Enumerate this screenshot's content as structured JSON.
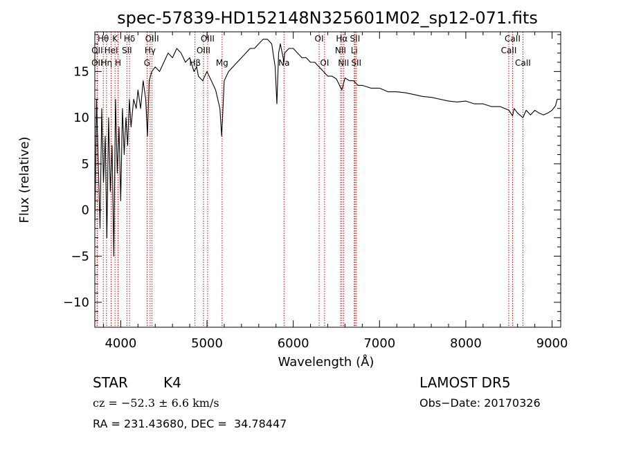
{
  "chart_data": {
    "type": "line",
    "title": "spec-57839-HD152148N325601M02_sp12-071.fits",
    "xlabel": "Wavelength (Å)",
    "ylabel": "Flux (relative)",
    "xlim": [
      3700,
      9100
    ],
    "ylim": [
      -12.7,
      19.3
    ],
    "x_ticks": [
      4000,
      5000,
      6000,
      7000,
      8000,
      9000
    ],
    "y_ticks": [
      -10,
      -5,
      0,
      5,
      10,
      15
    ],
    "grid": false,
    "colors": {
      "spectrum": "#000000",
      "lines": "#cc0000",
      "axes": "#000000"
    },
    "series": [
      {
        "x": [
          3700,
          3720,
          3740,
          3760,
          3780,
          3800,
          3820,
          3840,
          3860,
          3880,
          3900,
          3920,
          3940,
          3960,
          3980,
          4000,
          4020,
          4040,
          4060,
          4080,
          4100,
          4120,
          4150,
          4180,
          4200,
          4230,
          4260,
          4290,
          4310,
          4330,
          4360,
          4400,
          4450,
          4500,
          4550,
          4600,
          4650,
          4700,
          4750,
          4800,
          4850,
          4880,
          4900,
          4950,
          5000,
          5050,
          5100,
          5150,
          5170,
          5180,
          5200,
          5250,
          5300,
          5350,
          5400,
          5450,
          5500,
          5550,
          5600,
          5650,
          5700,
          5750,
          5790,
          5810,
          5830,
          5850,
          5893,
          5900,
          5950,
          6000,
          6050,
          6100,
          6150,
          6200,
          6250,
          6300,
          6350,
          6400,
          6450,
          6500,
          6563,
          6600,
          6650,
          6700,
          6750,
          6800,
          6900,
          7000,
          7100,
          7200,
          7300,
          7400,
          7500,
          7600,
          7700,
          7800,
          7900,
          8000,
          8100,
          8200,
          8300,
          8400,
          8450,
          8500,
          8542,
          8560,
          8600,
          8662,
          8700,
          8750,
          8800,
          8850,
          8900,
          8950,
          9000,
          9040,
          9060
        ],
        "y": [
          -2,
          12,
          5,
          -2,
          11,
          3,
          8,
          -3,
          10,
          2,
          7,
          -5,
          12,
          4,
          9,
          1,
          11,
          6,
          10,
          7,
          12,
          9,
          12,
          11,
          13,
          11,
          14,
          12,
          8,
          14,
          15,
          15.5,
          15,
          16,
          17,
          16.5,
          17.5,
          17,
          16,
          16.5,
          15,
          15.5,
          14.5,
          14,
          15,
          14,
          13,
          11,
          8,
          10,
          14,
          15,
          15.5,
          16,
          16.5,
          17,
          17.5,
          17.5,
          18,
          18.5,
          18.5,
          18,
          15.5,
          11.5,
          17,
          18,
          16,
          17,
          17.5,
          17.5,
          17,
          16.5,
          16.5,
          16,
          16,
          15.5,
          15,
          14.5,
          14.5,
          14.2,
          13,
          14.3,
          14,
          14,
          13.5,
          13.5,
          13.2,
          13.2,
          12.8,
          12.8,
          12.7,
          12.5,
          12.3,
          12.2,
          12,
          11.8,
          11.7,
          11.8,
          11.5,
          11.5,
          11.2,
          11.2,
          11,
          10.8,
          10.2,
          11,
          10.5,
          10,
          10.8,
          10.3,
          10.8,
          10.5,
          10.3,
          10.5,
          10.8,
          11.3,
          12
        ]
      }
    ],
    "emission_lines": [
      {
        "label": "Hθ",
        "x": 3798,
        "row": 0
      },
      {
        "label": "K",
        "x": 3934,
        "row": 0
      },
      {
        "label": "Hδ",
        "x": 4102,
        "row": 0
      },
      {
        "label": "OII",
        "x": 3727,
        "row": 1
      },
      {
        "label": "HeI",
        "x": 3889,
        "row": 1
      },
      {
        "label": "SII",
        "x": 4072,
        "row": 1
      },
      {
        "label": "OII",
        "x": 3727,
        "row": 2
      },
      {
        "label": "Hη",
        "x": 3835,
        "row": 2
      },
      {
        "label": "H",
        "x": 3969,
        "row": 2
      },
      {
        "label": "OIII",
        "x": 4363,
        "row": 0
      },
      {
        "label": "Hγ",
        "x": 4341,
        "row": 1
      },
      {
        "label": "G",
        "x": 4305,
        "row": 2
      },
      {
        "label": "OIII",
        "x": 5007,
        "row": 0
      },
      {
        "label": "OIII",
        "x": 4959,
        "row": 1
      },
      {
        "label": "Hβ",
        "x": 4861,
        "row": 2
      },
      {
        "label": "Mg",
        "x": 5175,
        "row": 2
      },
      {
        "label": "Na",
        "x": 5893,
        "row": 2
      },
      {
        "label": "OI",
        "x": 6300,
        "row": 0
      },
      {
        "label": "OI",
        "x": 6363,
        "row": 2
      },
      {
        "label": "Hα",
        "x": 6563,
        "row": 0
      },
      {
        "label": "SII",
        "x": 6716,
        "row": 0
      },
      {
        "label": "NII",
        "x": 6548,
        "row": 1
      },
      {
        "label": "Li",
        "x": 6707,
        "row": 1
      },
      {
        "label": "NII",
        "x": 6583,
        "row": 2
      },
      {
        "label": "SII",
        "x": 6731,
        "row": 2
      },
      {
        "label": "CaII",
        "x": 8542,
        "row": 0
      },
      {
        "label": "CaII",
        "x": 8498,
        "row": 1
      },
      {
        "label": "CaII",
        "x": 8662,
        "row": 2
      }
    ]
  },
  "info": {
    "object_class": "STAR",
    "subclass": "K4",
    "survey": "LAMOST DR5",
    "redshift": "cz = −52.3 ± 6.6 km/s",
    "obs_date": "Obs−Date: 20170326",
    "coords": "RA = 231.43680, DEC =  34.78447"
  }
}
